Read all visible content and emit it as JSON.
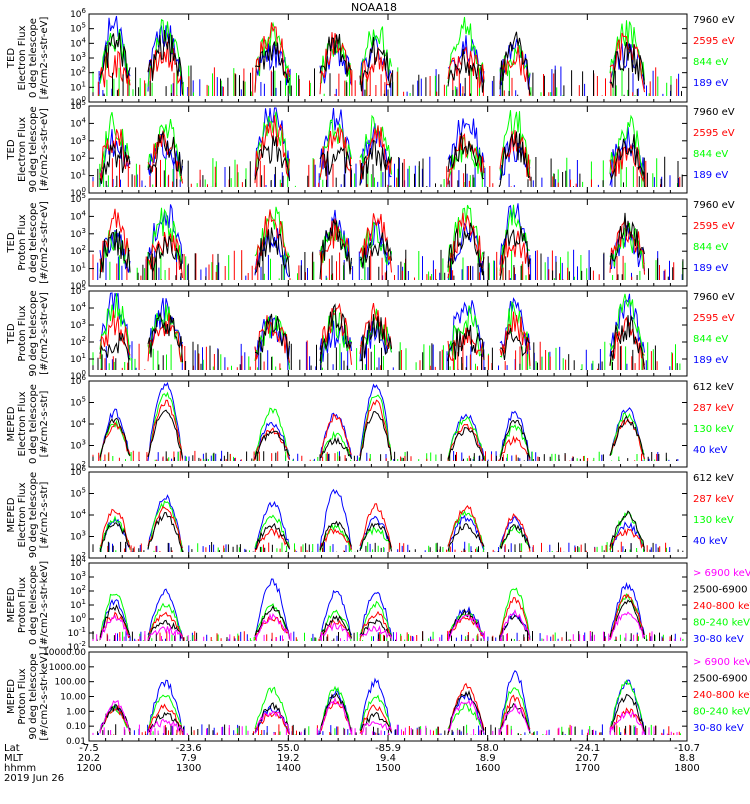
{
  "title": "NOAA18",
  "colors": {
    "black": "#000000",
    "red": "#ff0000",
    "green": "#00ff00",
    "blue": "#0000ff",
    "magenta": "#ff00ff"
  },
  "x_axis": {
    "rows": [
      {
        "label": "Lat",
        "values": [
          "-7.5",
          "-23.6",
          "55.0",
          "-85.9",
          "58.0",
          "-24.1",
          "-10.7"
        ]
      },
      {
        "label": "MLT",
        "values": [
          "20.2",
          "7.9",
          "19.2",
          "9.4",
          "8.9",
          "20.7",
          "8.8"
        ]
      },
      {
        "label": "hhmm",
        "values": [
          "1200",
          "1300",
          "1400",
          "1500",
          "1600",
          "1700",
          "1800"
        ]
      }
    ],
    "date": "2019 Jun 26"
  },
  "chart_data": [
    {
      "type": "line",
      "ylabel": [
        "TED",
        "Electron Flux",
        "0 deg telescope",
        "[#/cm2-s-str-eV]"
      ],
      "ylim": [
        1,
        1000000
      ],
      "log": true,
      "yticks": [
        "10^0",
        "10^1",
        "10^2",
        "10^3",
        "10^4",
        "10^5",
        "10^6"
      ],
      "legend": [
        {
          "text": "7960 eV",
          "color": "#000000"
        },
        {
          "text": "2595 eV",
          "color": "#ff0000"
        },
        {
          "text": "844 eV",
          "color": "#00ff00"
        },
        {
          "text": "189 eV",
          "color": "#0000ff"
        }
      ]
    },
    {
      "type": "line",
      "ylabel": [
        "TED",
        "Electron Flux",
        "90 deg telescope",
        "[#/cm2-s-str-eV]"
      ],
      "ylim": [
        1,
        100000
      ],
      "log": true,
      "yticks": [
        "10^0",
        "10^1",
        "10^2",
        "10^3",
        "10^4",
        "10^5"
      ],
      "legend": [
        {
          "text": "7960 eV",
          "color": "#000000"
        },
        {
          "text": "2595 eV",
          "color": "#ff0000"
        },
        {
          "text": "844 eV",
          "color": "#00ff00"
        },
        {
          "text": "189 eV",
          "color": "#0000ff"
        }
      ]
    },
    {
      "type": "line",
      "ylabel": [
        "TED",
        "Proton Flux",
        "0 deg telescope",
        "[#/cm2-s-str-eV]"
      ],
      "ylim": [
        1,
        100000
      ],
      "log": true,
      "yticks": [
        "10^0",
        "10^1",
        "10^2",
        "10^3",
        "10^4",
        "10^5"
      ],
      "legend": [
        {
          "text": "7960 eV",
          "color": "#000000"
        },
        {
          "text": "2595 eV",
          "color": "#ff0000"
        },
        {
          "text": "844 eV",
          "color": "#00ff00"
        },
        {
          "text": "189 eV",
          "color": "#0000ff"
        }
      ]
    },
    {
      "type": "line",
      "ylabel": [
        "TED",
        "Proton Flux",
        "90 deg telescope",
        "[#/cm2-s-str-eV]"
      ],
      "ylim": [
        1,
        100000
      ],
      "log": true,
      "yticks": [
        "10^0",
        "10^1",
        "10^2",
        "10^3",
        "10^4",
        "10^5"
      ],
      "legend": [
        {
          "text": "7960 eV",
          "color": "#000000"
        },
        {
          "text": "2595 eV",
          "color": "#ff0000"
        },
        {
          "text": "844 eV",
          "color": "#00ff00"
        },
        {
          "text": "189 eV",
          "color": "#0000ff"
        }
      ]
    },
    {
      "type": "line",
      "ylabel": [
        "MEPED",
        "Electron Flux",
        "0 deg telescope",
        "[#/cm2-s-str]"
      ],
      "ylim": [
        100,
        1000000
      ],
      "log": true,
      "yticks": [
        "10^2",
        "10^3",
        "10^4",
        "10^5",
        "10^6"
      ],
      "legend": [
        {
          "text": "612 keV",
          "color": "#000000"
        },
        {
          "text": "287 keV",
          "color": "#ff0000"
        },
        {
          "text": "130 keV",
          "color": "#00ff00"
        },
        {
          "text": "40 keV",
          "color": "#0000ff"
        }
      ]
    },
    {
      "type": "line",
      "ylabel": [
        "MEPED",
        "Electron Flux",
        "90 deg telescope",
        "[#/cm2-s-str]"
      ],
      "ylim": [
        100,
        1000000
      ],
      "log": true,
      "yticks": [
        "10^2",
        "10^3",
        "10^4",
        "10^5",
        "10^6"
      ],
      "legend": [
        {
          "text": "612 keV",
          "color": "#000000"
        },
        {
          "text": "287 keV",
          "color": "#ff0000"
        },
        {
          "text": "130 keV",
          "color": "#00ff00"
        },
        {
          "text": "40 keV",
          "color": "#0000ff"
        }
      ]
    },
    {
      "type": "line",
      "ylabel": [
        "MEPED",
        "Proton Flux",
        "0 deg telescope",
        "[#/cm2-s-str-keV]"
      ],
      "ylim": [
        0.01,
        10000
      ],
      "log": true,
      "yticks": [
        "10^-2",
        "10^-1",
        "10^0",
        "10^1",
        "10^2",
        "10^3",
        "10^4"
      ],
      "legend": [
        {
          "text": "> 6900 keV",
          "color": "#ff00ff"
        },
        {
          "text": "2500-6900",
          "color": "#000000"
        },
        {
          "text": "240-800 keV",
          "color": "#ff0000"
        },
        {
          "text": "80-240 keV",
          "color": "#00ff00"
        },
        {
          "text": "30-80 keV",
          "color": "#0000ff"
        }
      ]
    },
    {
      "type": "line",
      "ylabel": [
        "MEPED",
        "Proton Flux",
        "90 deg telescope",
        "[#/cm2-s-str-keV]"
      ],
      "ylim": [
        0.01,
        10000
      ],
      "log": true,
      "yticks": [
        "0.01",
        "0.10",
        "1.00",
        "10.00",
        "100.00",
        "1000.00",
        "10000.00"
      ],
      "legend": [
        {
          "text": "> 6900 keV",
          "color": "#ff00ff"
        },
        {
          "text": "2500-6900",
          "color": "#000000"
        },
        {
          "text": "240-800 keV",
          "color": "#ff0000"
        },
        {
          "text": "80-240 keV",
          "color": "#00ff00"
        },
        {
          "text": "30-80 keV",
          "color": "#0000ff"
        }
      ]
    }
  ]
}
